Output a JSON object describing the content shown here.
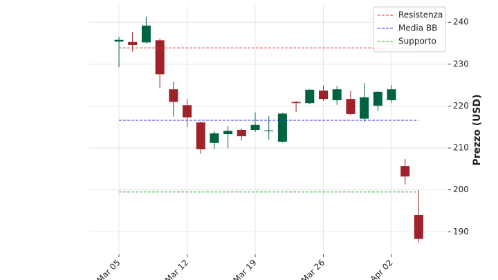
{
  "chart_data": {
    "type": "candlestick",
    "y_label": "Prezzo (USD)",
    "categories": [
      "Mar 05",
      null,
      null,
      null,
      null,
      "Mar 12",
      null,
      null,
      null,
      null,
      "Mar 19",
      null,
      null,
      null,
      null,
      "Mar 26",
      null,
      null,
      null,
      null,
      "Apr 02",
      null,
      null
    ],
    "open": [
      235.4,
      235.3,
      235.2,
      235.7,
      224.0,
      220.2,
      216.1,
      211.2,
      213.3,
      214.3,
      214.3,
      214.1,
      211.5,
      221.0,
      220.7,
      223.7,
      221.4,
      221.7,
      217.0,
      220.1,
      221.4,
      205.7,
      194.0
    ],
    "high": [
      236.5,
      237.7,
      241.3,
      236.1,
      225.8,
      221.7,
      216.3,
      214.0,
      215.3,
      214.6,
      218.5,
      217.6,
      218.4,
      221.2,
      224.0,
      224.9,
      224.8,
      223.6,
      225.5,
      223.6,
      225.0,
      207.4,
      199.9
    ],
    "low": [
      229.3,
      233.0,
      235.0,
      224.3,
      217.5,
      215.0,
      208.6,
      209.8,
      209.9,
      211.8,
      213.8,
      212.0,
      211.3,
      218.6,
      220.5,
      221.2,
      220.3,
      217.8,
      216.3,
      218.8,
      220.8,
      201.3,
      187.5
    ],
    "close": [
      235.8,
      234.6,
      239.2,
      227.6,
      221.0,
      217.3,
      209.7,
      213.5,
      214.1,
      212.8,
      215.5,
      214.2,
      218.2,
      220.7,
      223.9,
      221.7,
      224.0,
      218.1,
      222.1,
      223.4,
      224.0,
      203.2,
      188.3
    ],
    "up_color": "#006340",
    "down_color": "#a02128",
    "lines": [
      {
        "name": "Resistenza",
        "value": 233.9,
        "color": "#e03030"
      },
      {
        "name": "Media BB",
        "value": 216.6,
        "color": "#3030e0"
      },
      {
        "name": "Supporto",
        "value": 199.5,
        "color": "#30a030"
      }
    ],
    "ylim": [
      184.6,
      244
    ],
    "yticks": [
      190,
      200,
      210,
      220,
      230,
      240
    ],
    "grid": true,
    "legend": "upper right"
  }
}
